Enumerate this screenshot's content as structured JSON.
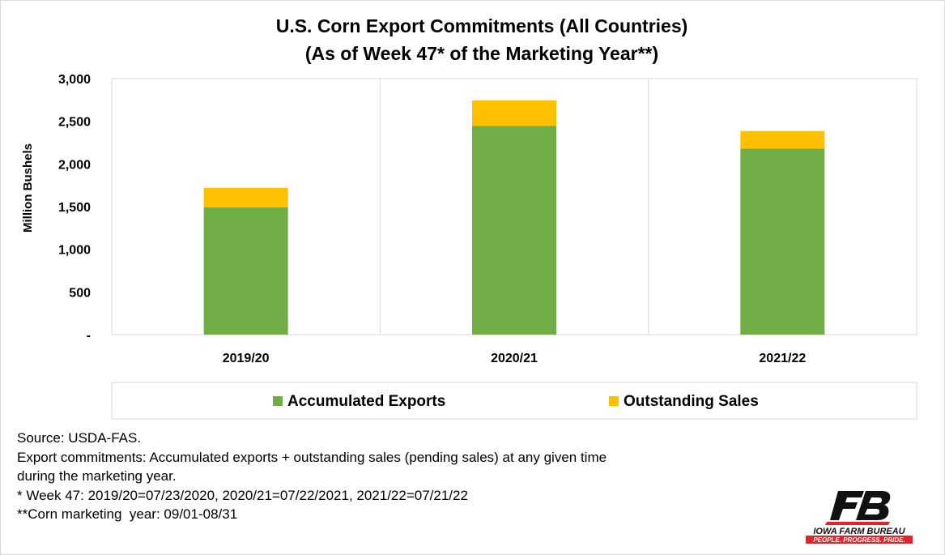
{
  "chart_data": {
    "type": "bar",
    "stacked": true,
    "title": "U.S. Corn Export Commitments (All Countries)",
    "subtitle": "(As of Week 47* of the Marketing Year**)",
    "categories": [
      "2019/20",
      "2020/21",
      "2021/22"
    ],
    "series": [
      {
        "name": "Accumulated Exports",
        "values": [
          1490,
          2445,
          2180
        ],
        "color": "#70ad47"
      },
      {
        "name": "Outstanding Sales",
        "values": [
          230,
          300,
          205
        ],
        "color": "#ffc000"
      }
    ],
    "xlabel": "",
    "ylabel": "Million Bushels",
    "ylim": [
      0,
      3000
    ],
    "yticks": [
      0,
      500,
      1000,
      1500,
      2000,
      2500,
      3000
    ],
    "ytick_labels": [
      "-",
      "500",
      "1,000",
      "1,500",
      "2,000",
      "2,500",
      "3,000"
    ],
    "grid": "vertical",
    "legend_position": "bottom"
  },
  "notes": {
    "source": "Source: USDA-FAS.",
    "line1": "Export commitments: Accumulated exports + outstanding sales (pending sales) at any given time",
    "line2": "during the marketing year.",
    "line3": "* Week 47: 2019/20=07/23/2020, 2020/21=07/22/2021, 2021/22=07/21/22",
    "line4": "**Corn marketing  year: 09/01-08/31"
  },
  "logo": {
    "mark": "FB",
    "name": "IOWA FARM BUREAU",
    "tagline": "PEOPLE. PROGRESS. PRIDE.",
    "red": "#e0242a"
  }
}
